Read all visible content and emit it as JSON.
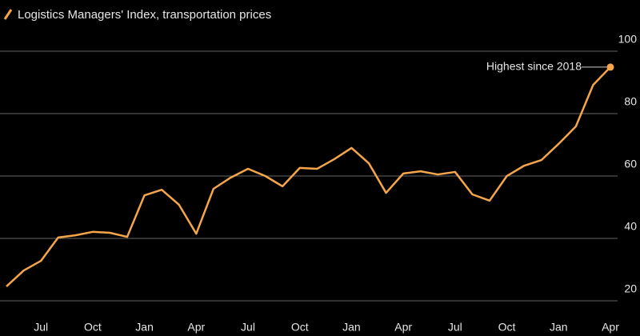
{
  "chart_data": {
    "type": "line",
    "title": "Logistics Managers' Index, transportation prices",
    "annotation": "Highest since 2018",
    "categories": [
      null,
      null,
      "Jul",
      null,
      null,
      "Oct",
      null,
      null,
      "Jan",
      null,
      null,
      "Apr",
      null,
      null,
      "Jul",
      null,
      null,
      "Oct",
      null,
      null,
      "Jan",
      null,
      null,
      "Apr",
      null,
      null,
      "Jul",
      null,
      null,
      "Oct",
      null,
      null,
      "Jan",
      null,
      null,
      "Apr"
    ],
    "series": [
      {
        "name": "Logistics Managers' Index, transportation prices",
        "color": "#f5a54a",
        "values": [
          24.6,
          29.7,
          32.8,
          40.3,
          41,
          42.1,
          41.8,
          40.5,
          53.8,
          55.6,
          50.8,
          41.5,
          55.9,
          59.5,
          62.3,
          60,
          56.7,
          62.6,
          62.3,
          65.4,
          69,
          64.1,
          54.6,
          60.8,
          61.5,
          60.5,
          61.3,
          54.1,
          52.1,
          60,
          63.3,
          65.1,
          70.3,
          75.9,
          89.2,
          94.9
        ]
      }
    ],
    "ylim": [
      20,
      100
    ],
    "yticks": [
      20,
      40,
      60,
      80,
      100
    ],
    "grid": true
  }
}
